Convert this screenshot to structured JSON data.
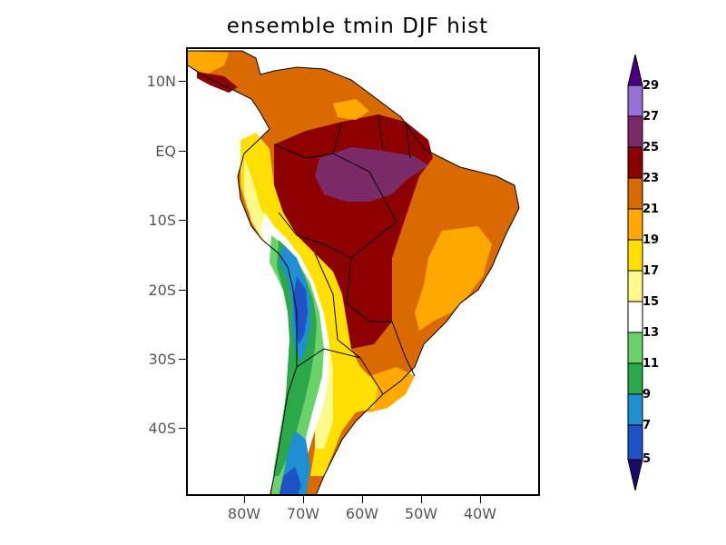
{
  "title": "ensemble tmin DJF hist",
  "y_axis": {
    "labels": [
      "10N",
      "EQ",
      "10S",
      "20S",
      "30S",
      "40S"
    ]
  },
  "x_axis": {
    "labels": [
      "80W",
      "70W",
      "60W",
      "50W",
      "40W"
    ]
  },
  "colorbar": {
    "labels": [
      "29",
      "27",
      "25",
      "23",
      "21",
      "19",
      "17",
      "15",
      "13",
      "11",
      "9",
      "7",
      "5"
    ],
    "colors": {
      "under": "#1a0a6e",
      "5-7": "#1f52c4",
      "7-9": "#1e8fd0",
      "9-11": "#2aa84a",
      "11-13": "#6ad26a",
      "13-15": "#ffffff",
      "15-17": "#fff88a",
      "17-19": "#ffe000",
      "19-21": "#ffa800",
      "21-23": "#d96a00",
      "23-25": "#8c0000",
      "25-27": "#7a2a66",
      "27-29": "#9a6fd6",
      "over": "#4b0082"
    }
  },
  "map": {
    "variable": "tmin",
    "season": "DJF",
    "period": "hist",
    "region": "South America",
    "lon_range": [
      "90W",
      "30W"
    ],
    "lat_range": [
      "13N",
      "50S"
    ]
  }
}
